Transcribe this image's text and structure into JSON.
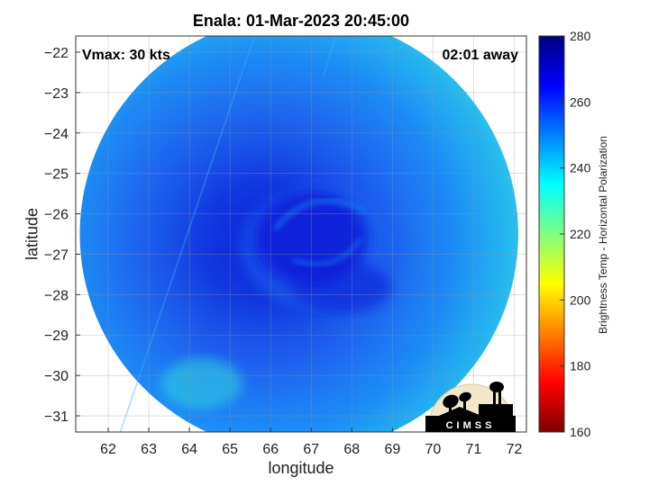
{
  "title": "Enala: 01-Mar-2023 20:45:00",
  "annotations": {
    "vmax": "Vmax: 30 kts",
    "time_away": "02:01 away"
  },
  "axes": {
    "xlabel": "longitude",
    "ylabel": "latitude",
    "xlim": [
      61.2,
      72.3
    ],
    "ylim": [
      -31.4,
      -21.6
    ],
    "xticks": [
      62,
      63,
      64,
      65,
      66,
      67,
      68,
      69,
      70,
      71,
      72
    ],
    "yticks": [
      -22,
      -23,
      -24,
      -25,
      -26,
      -27,
      -28,
      -29,
      -30,
      -31
    ],
    "grid": true
  },
  "colorbar": {
    "label": "Brightness Temp - Horizontal Polarization",
    "min": 160,
    "max": 280,
    "ticks": [
      280,
      260,
      240,
      220,
      200,
      180,
      160
    ],
    "colormap": "jet",
    "colors": [
      "#7f0000",
      "#ff0000",
      "#ff8000",
      "#ffff00",
      "#80ff80",
      "#00ffff",
      "#0080ff",
      "#0000ff",
      "#00007f"
    ]
  },
  "storm": {
    "name": "Enala",
    "center_lon": 67.0,
    "center_lat": -26.6,
    "swath_center_lon": 66.7,
    "swath_center_lat": -26.5,
    "swath_radius_deg": 5.4
  },
  "logo": {
    "text": "CIMSS"
  },
  "colors": {
    "core": "#0a1fd8",
    "mid": "#1f5ff0",
    "outer": "#1c8ef5",
    "edge": "#2ec5ee",
    "fringe": "#33d6e0"
  }
}
